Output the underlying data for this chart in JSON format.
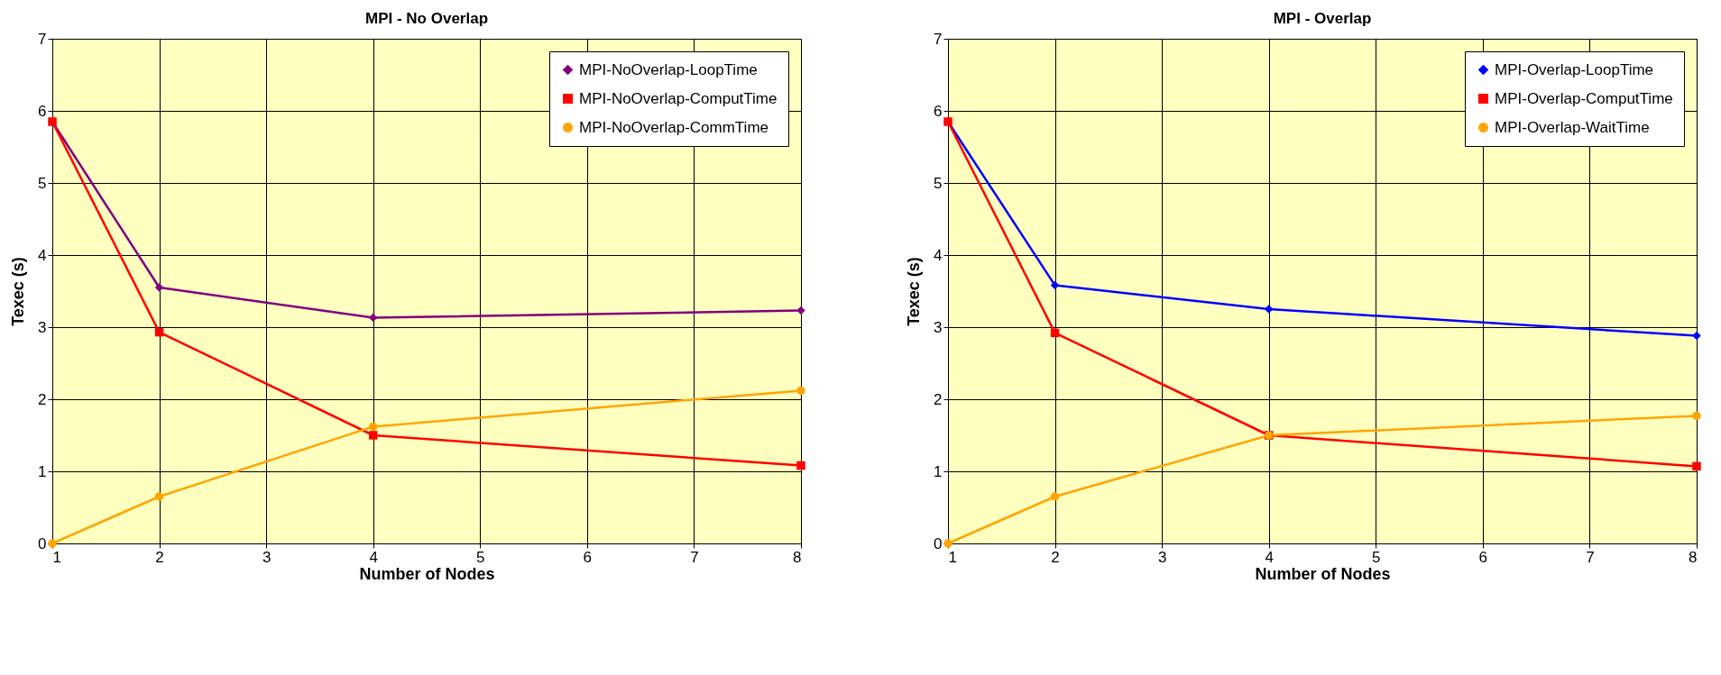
{
  "chart_data": [
    {
      "type": "line",
      "title": "MPI - No Overlap",
      "xlabel": "Number of Nodes",
      "ylabel": "Texec (s)",
      "x": [
        1,
        2,
        4,
        8
      ],
      "xlim": [
        1,
        8
      ],
      "xticks": [
        1,
        2,
        3,
        4,
        5,
        6,
        7,
        8
      ],
      "ylim": [
        0,
        7
      ],
      "yticks": [
        0,
        1,
        2,
        3,
        4,
        5,
        6,
        7
      ],
      "grid": true,
      "legend": "top right",
      "series": [
        {
          "name": "MPI-NoOverlap-LoopTime",
          "color": "#800080",
          "marker": "diamond",
          "values": [
            5.85,
            3.55,
            3.13,
            3.23
          ]
        },
        {
          "name": "MPI-NoOverlap-ComputTime",
          "color": "#ff0000",
          "marker": "square",
          "values": [
            5.85,
            2.93,
            1.5,
            1.08
          ]
        },
        {
          "name": "MPI-NoOverlap-CommTime",
          "color": "#ffa500",
          "marker": "circle",
          "values": [
            0,
            0.65,
            1.62,
            2.12
          ]
        }
      ]
    },
    {
      "type": "line",
      "title": "MPI - Overlap",
      "xlabel": "Number of Nodes",
      "ylabel": "Texec (s)",
      "x": [
        1,
        2,
        4,
        8
      ],
      "xlim": [
        1,
        8
      ],
      "xticks": [
        1,
        2,
        3,
        4,
        5,
        6,
        7,
        8
      ],
      "ylim": [
        0,
        7
      ],
      "yticks": [
        0,
        1,
        2,
        3,
        4,
        5,
        6,
        7
      ],
      "grid": true,
      "legend": "top right",
      "series": [
        {
          "name": "MPI-Overlap-LoopTime",
          "color": "#0000ff",
          "marker": "diamond",
          "values": [
            5.85,
            3.58,
            3.25,
            2.88
          ]
        },
        {
          "name": "MPI-Overlap-ComputTime",
          "color": "#ff0000",
          "marker": "square",
          "values": [
            5.85,
            2.92,
            1.5,
            1.07
          ]
        },
        {
          "name": "MPI-Overlap-WaitTime",
          "color": "#ffa500",
          "marker": "circle",
          "values": [
            0,
            0.65,
            1.5,
            1.77
          ]
        }
      ]
    }
  ]
}
